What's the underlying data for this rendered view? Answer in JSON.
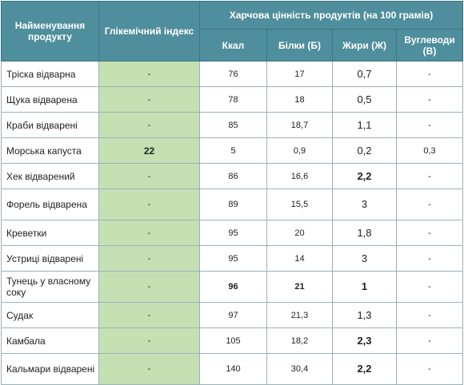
{
  "headers": {
    "name": "Найменування продукту",
    "gi": "Глікемічний індекс",
    "group": "Харчова цінність продуктів (на 100 грамів)",
    "kcal": "Ккал",
    "protein": "Білки (Б)",
    "fat": "Жири (Ж)",
    "carbs": "Вуглеводи (В)"
  },
  "rows": [
    {
      "name": "Тріска відварна",
      "gi": "-",
      "kcal": "76",
      "protein": "17",
      "fat": "0,7",
      "carbs": "-"
    },
    {
      "name": "Щука відварена",
      "gi": "-",
      "kcal": "78",
      "protein": "18",
      "fat": "0,5",
      "carbs": "-"
    },
    {
      "name": "Краби відварені",
      "gi": "-",
      "kcal": "85",
      "protein": "18,7",
      "fat": "1,1",
      "carbs": "-"
    },
    {
      "name": "Морська капуста",
      "gi": "22",
      "kcal": "5",
      "protein": "0,9",
      "fat": "0,2",
      "carbs": "0,3"
    },
    {
      "name": "Хек відварений",
      "gi": "-",
      "kcal": "86",
      "protein": "16,6",
      "fat": "2,2",
      "carbs": "-"
    },
    {
      "name": "Форель відварена",
      "gi": "-",
      "kcal": "89",
      "protein": "15,5",
      "fat": "3",
      "carbs": "-"
    },
    {
      "name": "Креветки",
      "gi": "-",
      "kcal": "95",
      "protein": "20",
      "fat": "1,8",
      "carbs": "-"
    },
    {
      "name": "Устриці відварені",
      "gi": "-",
      "kcal": "95",
      "protein": "14",
      "fat": "3",
      "carbs": "-"
    },
    {
      "name": "Тунець у власному соку",
      "gi": "-",
      "kcal": "96",
      "protein": "21",
      "fat": "1",
      "carbs": "-"
    },
    {
      "name": "Судак",
      "gi": "-",
      "kcal": "97",
      "protein": "21,3",
      "fat": "1,3",
      "carbs": "-"
    },
    {
      "name": "Камбала",
      "gi": "-",
      "kcal": "105",
      "protein": "18,2",
      "fat": "2,3",
      "carbs": "-"
    },
    {
      "name": "Кальмари відварені",
      "gi": "-",
      "kcal": "140",
      "protein": "30,4",
      "fat": "2,2",
      "carbs": "-"
    }
  ]
}
